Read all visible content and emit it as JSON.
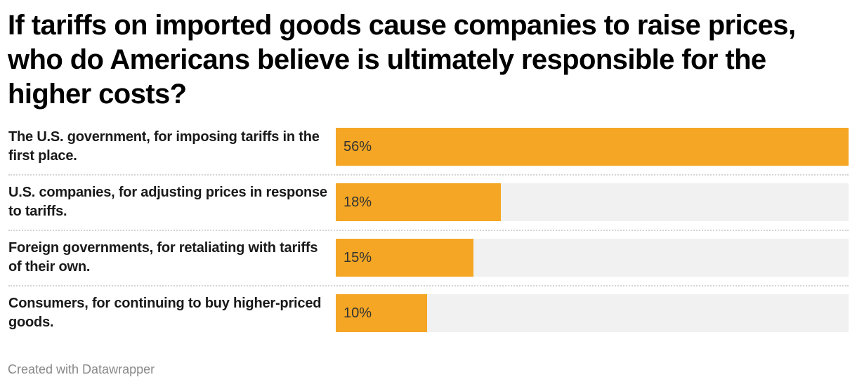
{
  "chart_data": {
    "type": "bar",
    "orientation": "horizontal",
    "title": "If tariffs on imported goods cause companies to raise prices, who do Americans believe is ultimately responsible for the higher costs?",
    "categories": [
      "The U.S. government, for imposing tariffs in the first place.",
      "U.S. companies, for adjusting prices in response to tariffs.",
      "Foreign governments, for retaliating with tariffs of their own.",
      "Consumers, for continuing to buy higher-priced goods."
    ],
    "values": [
      56,
      18,
      15,
      10
    ],
    "value_labels": [
      "56%",
      "18%",
      "15%",
      "10%"
    ],
    "unit": "%",
    "xlabel": "",
    "ylabel": "",
    "xlim": [
      0,
      56
    ],
    "grid": false,
    "bar_color": "#f4a624",
    "track_color": "#f1f1f1"
  },
  "footer": "Created with Datawrapper"
}
